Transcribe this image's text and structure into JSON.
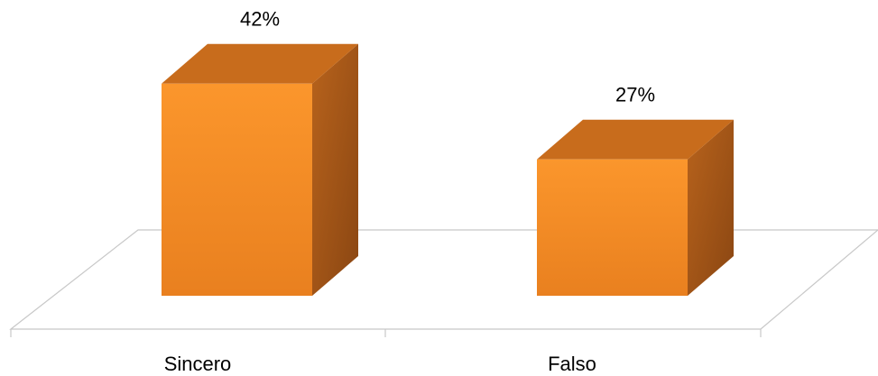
{
  "chart_data": {
    "type": "bar3d",
    "categories": [
      "Sincero",
      "Falso"
    ],
    "values": [
      42,
      27
    ],
    "value_labels": [
      "42%",
      "27%"
    ],
    "color": "#f7932a"
  }
}
